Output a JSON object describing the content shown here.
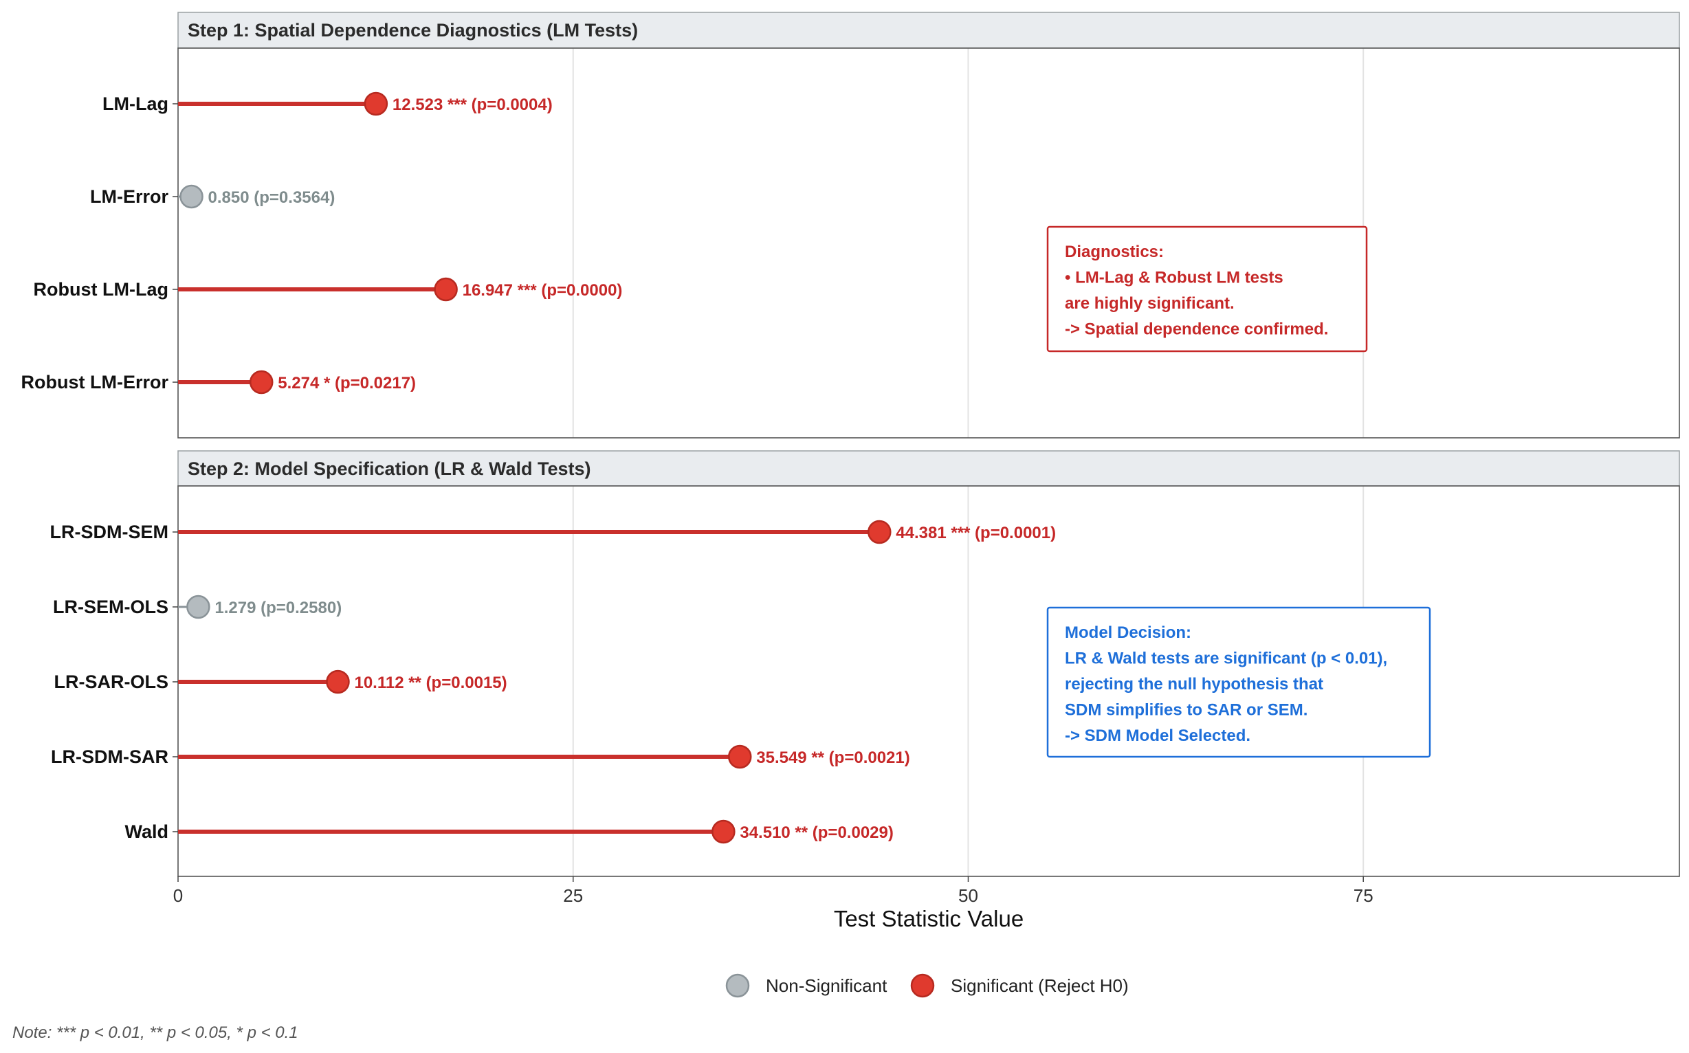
{
  "chart_data": {
    "type": "lollipop",
    "xlabel": "Test Statistic Value",
    "xlim": [
      0,
      95
    ],
    "x_ticks": [
      0,
      25,
      50,
      75
    ],
    "grid": true,
    "legend_position": "bottom",
    "colors": {
      "significant": "#E03A2E",
      "significant_line": "#C9302C",
      "non_significant": "#B4BBBF",
      "non_significant_edge": "#8A9398",
      "label_significant": "#C62828",
      "label_non_significant": "#7F8C8D",
      "strip_bg": "#E9ECEF",
      "diagnostics_box": "#C62828",
      "decision_box": "#1E6FD9"
    },
    "facets": [
      {
        "title": "Step 1: Spatial Dependence Diagnostics (LM Tests)",
        "items": [
          {
            "test": "LM-Lag",
            "value": 12.523,
            "label": "12.523 *** (p=0.0004)",
            "significant": true
          },
          {
            "test": "LM-Error",
            "value": 0.85,
            "label": "0.850 (p=0.3564)",
            "significant": false
          },
          {
            "test": "Robust LM-Lag",
            "value": 16.947,
            "label": "16.947 *** (p=0.0000)",
            "significant": true
          },
          {
            "test": "Robust LM-Error",
            "value": 5.274,
            "label": "5.274 * (p=0.0217)",
            "significant": true
          }
        ],
        "annotation": {
          "kind": "diagnostics",
          "lines": [
            "Diagnostics:",
            "• LM-Lag & Robust LM tests",
            "are highly significant.",
            "-> Spatial dependence confirmed."
          ]
        }
      },
      {
        "title": "Step 2: Model Specification (LR & Wald Tests)",
        "items": [
          {
            "test": "LR-SDM-SEM",
            "value": 44.381,
            "label": "44.381 *** (p=0.0001)",
            "significant": true
          },
          {
            "test": "LR-SEM-OLS",
            "value": 1.279,
            "label": "1.279 (p=0.2580)",
            "significant": false
          },
          {
            "test": "LR-SAR-OLS",
            "value": 10.112,
            "label": "10.112 ** (p=0.0015)",
            "significant": true
          },
          {
            "test": "LR-SDM-SAR",
            "value": 35.549,
            "label": "35.549 ** (p=0.0021)",
            "significant": true
          },
          {
            "test": "Wald",
            "value": 34.51,
            "label": "34.510 ** (p=0.0029)",
            "significant": true
          }
        ],
        "annotation": {
          "kind": "decision",
          "lines": [
            "Model Decision:",
            "LR & Wald tests are significant (p < 0.01),",
            "rejecting the null hypothesis that",
            "SDM simplifies to SAR or SEM.",
            "-> SDM Model Selected."
          ]
        }
      }
    ],
    "legend": [
      {
        "label": "Non-Significant",
        "significant": false
      },
      {
        "label": "Significant (Reject H0)",
        "significant": true
      }
    ],
    "note": "Note: *** p < 0.01, ** p < 0.05, * p < 0.1"
  }
}
